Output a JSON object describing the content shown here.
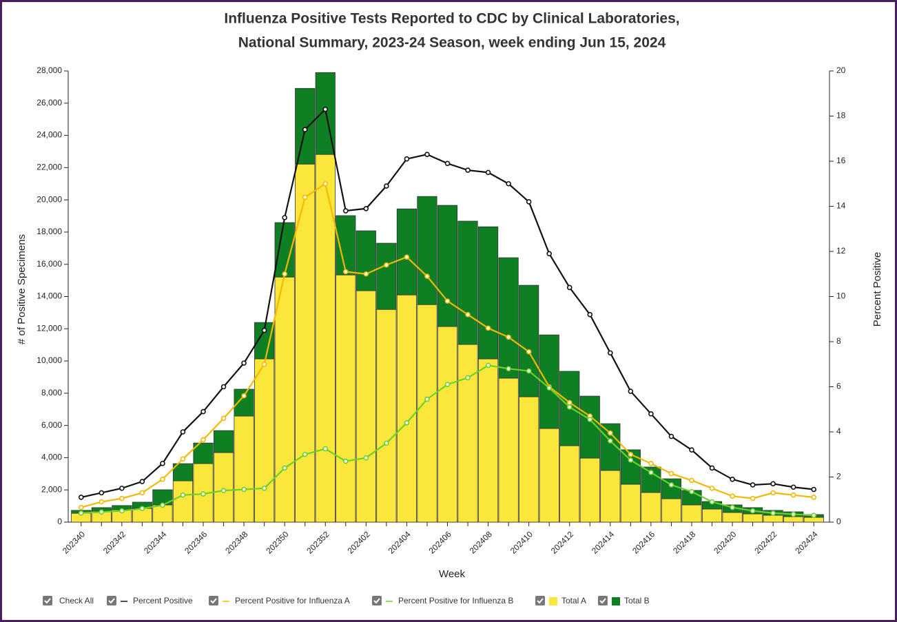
{
  "chart_data": {
    "type": "bar",
    "title": [
      "Influenza Positive Tests Reported to CDC by Clinical Laboratories,",
      "National Summary, 2023-24 Season, week ending Jun 15, 2024"
    ],
    "x_label": "Week",
    "y_label": "# of Positive Specimens",
    "y2_label": "Percent Positive",
    "check_all": "Check All",
    "stacked": true,
    "categories": [
      "202340",
      null,
      "202342",
      null,
      "202344",
      null,
      "202346",
      null,
      "202348",
      null,
      "202350",
      null,
      "202352",
      null,
      "202402",
      null,
      "202404",
      null,
      "202406",
      null,
      "202408",
      null,
      "202410",
      null,
      "202412",
      null,
      "202414",
      null,
      "202416",
      null,
      "202418",
      null,
      "202420",
      null,
      "202422",
      null,
      "202424"
    ],
    "series": [
      {
        "name": "Percent Positive",
        "type": "line",
        "axis": "y2",
        "color": "#111111",
        "values": [
          1.1,
          1.3,
          1.5,
          1.8,
          2.6,
          4.0,
          4.9,
          6.0,
          7.05,
          8.5,
          13.5,
          17.4,
          18.3,
          13.8,
          13.9,
          14.9,
          16.1,
          16.3,
          15.9,
          15.6,
          15.5,
          15.0,
          14.2,
          11.9,
          10.4,
          9.2,
          7.5,
          5.8,
          4.8,
          3.8,
          3.2,
          2.4,
          1.9,
          1.65,
          1.7,
          1.55,
          1.45
        ]
      },
      {
        "name": "Percent Positive for Influenza A",
        "type": "line",
        "axis": "y2",
        "color": "#f5b800",
        "values": [
          0.65,
          0.9,
          1.05,
          1.3,
          1.9,
          2.8,
          3.65,
          4.6,
          5.6,
          7.0,
          11.0,
          14.4,
          15.0,
          11.1,
          11.0,
          11.4,
          11.75,
          10.9,
          9.8,
          9.2,
          8.6,
          8.2,
          7.55,
          6.0,
          5.3,
          4.7,
          3.95,
          3.0,
          2.6,
          2.15,
          1.85,
          1.5,
          1.15,
          1.05,
          1.3,
          1.2,
          1.1
        ]
      },
      {
        "name": "Percent Positive for Influenza B",
        "type": "line",
        "axis": "y2",
        "color": "#6cd02a",
        "values": [
          0.4,
          0.45,
          0.5,
          0.6,
          0.75,
          1.2,
          1.25,
          1.4,
          1.45,
          1.5,
          2.4,
          3.0,
          3.25,
          2.7,
          2.85,
          3.5,
          4.4,
          5.45,
          6.1,
          6.4,
          6.95,
          6.8,
          6.7,
          5.95,
          5.1,
          4.55,
          3.6,
          2.75,
          2.2,
          1.65,
          1.35,
          0.9,
          0.65,
          0.5,
          0.4,
          0.35,
          0.3
        ]
      },
      {
        "name": "Total A",
        "type": "bar",
        "color": "#fbe73c",
        "values": [
          550,
          680,
          770,
          850,
          1070,
          2560,
          3630,
          4320,
          6580,
          10130,
          15210,
          22220,
          22820,
          15340,
          14360,
          13200,
          14100,
          13500,
          12140,
          11030,
          10130,
          8930,
          7780,
          5810,
          4740,
          3970,
          3210,
          2350,
          1840,
          1450,
          1070,
          810,
          600,
          510,
          430,
          340,
          300
        ]
      },
      {
        "name": "Total B",
        "type": "bar",
        "color": "#0f7f24",
        "values": [
          180,
          220,
          260,
          390,
          940,
          1070,
          1280,
          1360,
          1670,
          2260,
          3380,
          4700,
          5080,
          3680,
          3720,
          4110,
          5340,
          6710,
          7520,
          7650,
          8200,
          7480,
          6920,
          5810,
          4620,
          3850,
          2900,
          2140,
          1580,
          1240,
          900,
          470,
          470,
          390,
          300,
          300,
          170
        ]
      }
    ],
    "ylim": [
      0,
      28000
    ],
    "yticks": [
      0,
      {
        "value": 2000,
        "label": "2,000"
      },
      {
        "value": 4000,
        "label": "4,000"
      },
      {
        "value": 6000,
        "label": "6,000"
      },
      {
        "value": 8000,
        "label": "8,000"
      },
      {
        "value": 10000,
        "label": "10,000"
      },
      {
        "value": 12000,
        "label": "12,000"
      },
      {
        "value": 14000,
        "label": "14,000"
      },
      {
        "value": 16000,
        "label": "16,000"
      },
      {
        "value": 18000,
        "label": "18,000"
      },
      {
        "value": 20000,
        "label": "20,000"
      },
      {
        "value": 22000,
        "label": "22,000"
      },
      {
        "value": 24000,
        "label": "24,000"
      },
      {
        "value": 26000,
        "label": "26,000"
      },
      {
        "value": 28000,
        "label": "28,000"
      }
    ],
    "y2lim": [
      0,
      20
    ],
    "y2ticks": [
      0,
      2,
      4,
      6,
      8,
      10,
      12,
      14,
      16,
      18,
      20
    ],
    "grid": false
  }
}
